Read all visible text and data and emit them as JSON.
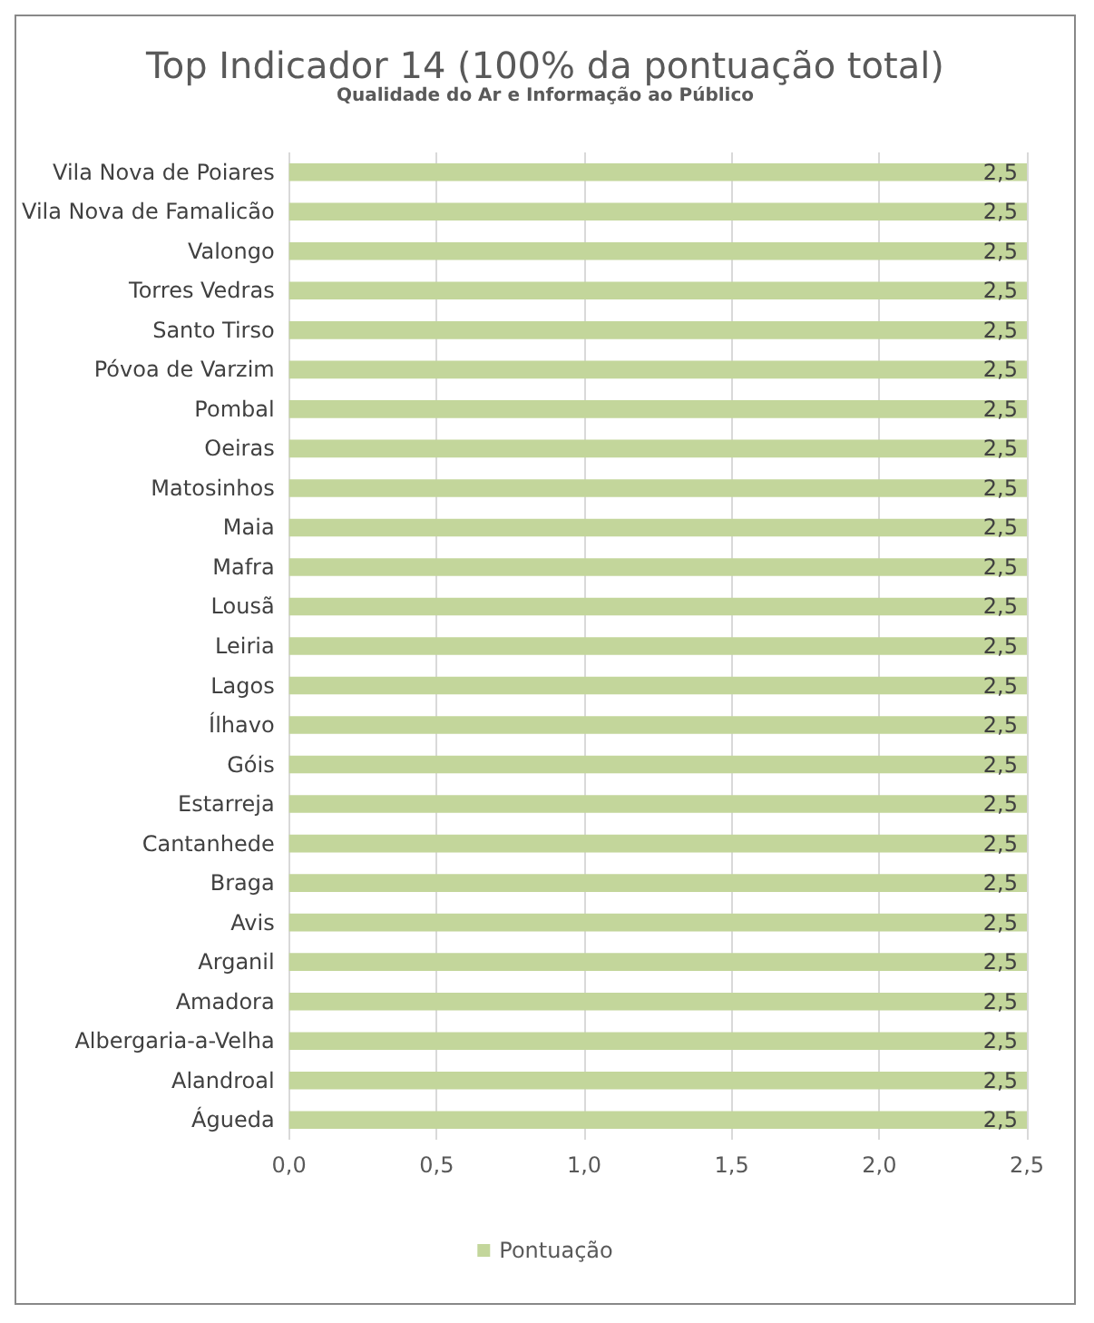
{
  "chart_data": {
    "type": "bar",
    "orientation": "horizontal",
    "title": "Top Indicador 14 (100% da pontuação total)",
    "subtitle": "Qualidade do Ar e Informação ao Público",
    "categories": [
      "Vila Nova de Poiares",
      "Vila Nova de Famalicão",
      "Valongo",
      "Torres Vedras",
      "Santo Tirso",
      "Póvoa de Varzim",
      "Pombal",
      "Oeiras",
      "Matosinhos",
      "Maia",
      "Mafra",
      "Lousã",
      "Leiria",
      "Lagos",
      "Ílhavo",
      "Góis",
      "Estarreja",
      "Cantanhede",
      "Braga",
      "Avis",
      "Arganil",
      "Amadora",
      "Albergaria-a-Velha",
      "Alandroal",
      "Águeda"
    ],
    "series": [
      {
        "name": "Pontuação",
        "color": "#c3d69b",
        "values": [
          2.5,
          2.5,
          2.5,
          2.5,
          2.5,
          2.5,
          2.5,
          2.5,
          2.5,
          2.5,
          2.5,
          2.5,
          2.5,
          2.5,
          2.5,
          2.5,
          2.5,
          2.5,
          2.5,
          2.5,
          2.5,
          2.5,
          2.5,
          2.5,
          2.5
        ],
        "value_labels": [
          "2,5",
          "2,5",
          "2,5",
          "2,5",
          "2,5",
          "2,5",
          "2,5",
          "2,5",
          "2,5",
          "2,5",
          "2,5",
          "2,5",
          "2,5",
          "2,5",
          "2,5",
          "2,5",
          "2,5",
          "2,5",
          "2,5",
          "2,5",
          "2,5",
          "2,5",
          "2,5",
          "2,5",
          "2,5"
        ]
      }
    ],
    "xlim": [
      0,
      2.5
    ],
    "xticks": [
      {
        "value": 0,
        "label": "0,0"
      },
      {
        "value": 0.5,
        "label": "0,5"
      },
      {
        "value": 1,
        "label": "1,0"
      },
      {
        "value": 1.5,
        "label": "1,5"
      },
      {
        "value": 2,
        "label": "2,0"
      },
      {
        "value": 2.5,
        "label": "2,5"
      }
    ],
    "grid": "x",
    "legend": "bottom"
  }
}
